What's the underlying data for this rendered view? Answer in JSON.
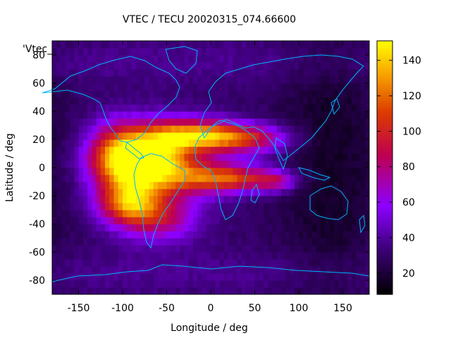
{
  "chart_data": {
    "type": "heatmap",
    "title": "VTEC / TECU 20020315_074.66600",
    "xlabel": "Longitude / deg",
    "ylabel": "Latitude / deg",
    "legend_entry": "'Vtec_",
    "xlim": [
      -180,
      180
    ],
    "ylim": [
      -90,
      90
    ],
    "xticks": [
      -150,
      -100,
      -50,
      0,
      50,
      100,
      150
    ],
    "yticks": [
      -80,
      -60,
      -40,
      -20,
      0,
      20,
      40,
      60,
      80
    ],
    "colorbar_ticks": [
      20,
      40,
      60,
      80,
      100,
      120,
      140
    ],
    "crange": [
      8,
      151
    ],
    "grid": false,
    "colormap": "black-purple-red-orange-yellow",
    "resolution_deg": 5,
    "field_model": [
      {
        "lon": -92,
        "lat": 3,
        "peak": 148,
        "sx": 30,
        "sy": 14
      },
      {
        "lon": -55,
        "lat": 8,
        "peak": 95,
        "sx": 30,
        "sy": 17
      },
      {
        "lon": -20,
        "lat": 23,
        "peak": 98,
        "sx": 38,
        "sy": 8
      },
      {
        "lon": 20,
        "lat": 22,
        "peak": 82,
        "sx": 38,
        "sy": 7
      },
      {
        "lon": 55,
        "lat": 19,
        "peak": 55,
        "sx": 30,
        "sy": 7
      },
      {
        "lon": -5,
        "lat": -6,
        "peak": 88,
        "sx": 38,
        "sy": 9
      },
      {
        "lon": 35,
        "lat": -8,
        "peak": 76,
        "sx": 38,
        "sy": 6
      },
      {
        "lon": 75,
        "lat": -10,
        "peak": 60,
        "sx": 14,
        "sy": 5
      },
      {
        "lon": -95,
        "lat": -25,
        "peak": 105,
        "sx": 24,
        "sy": 10
      },
      {
        "lon": -60,
        "lat": -35,
        "peak": 85,
        "sx": 32,
        "sy": 12
      },
      {
        "lon": -110,
        "lat": 20,
        "peak": 60,
        "sx": 22,
        "sy": 14
      }
    ],
    "background_model": {
      "base": 30,
      "low_band_lon": 135,
      "low_band_value": -14,
      "high_lat_value": 8
    }
  },
  "coastlines_color": "#00b4ff"
}
